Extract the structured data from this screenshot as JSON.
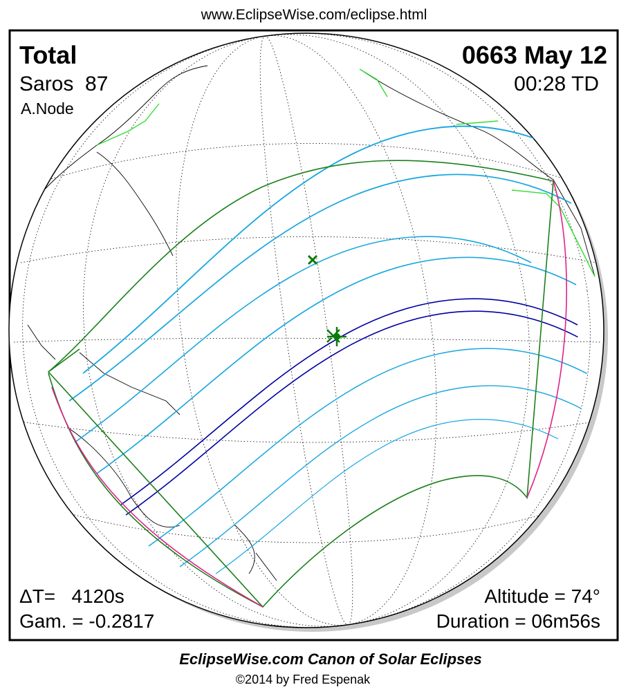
{
  "header": {
    "url": "www.EclipseWise.com/eclipse.html"
  },
  "panel": {
    "top_left": {
      "eclipse_type": "Total",
      "saros": "Saros  87",
      "node": "A.Node"
    },
    "top_right": {
      "date": "0663 May 12",
      "time": "00:28 TD"
    },
    "bottom_left": {
      "delta_t": "ΔT=   4120s",
      "gamma": "Gam. = -0.2817"
    },
    "bottom_right": {
      "altitude": "Altitude = 74°",
      "duration": "Duration = 06m56s"
    }
  },
  "footer": {
    "title": "EclipseWise.com Canon of Solar Eclipses",
    "copyright": "©2014 by Fred Espenak"
  }
}
